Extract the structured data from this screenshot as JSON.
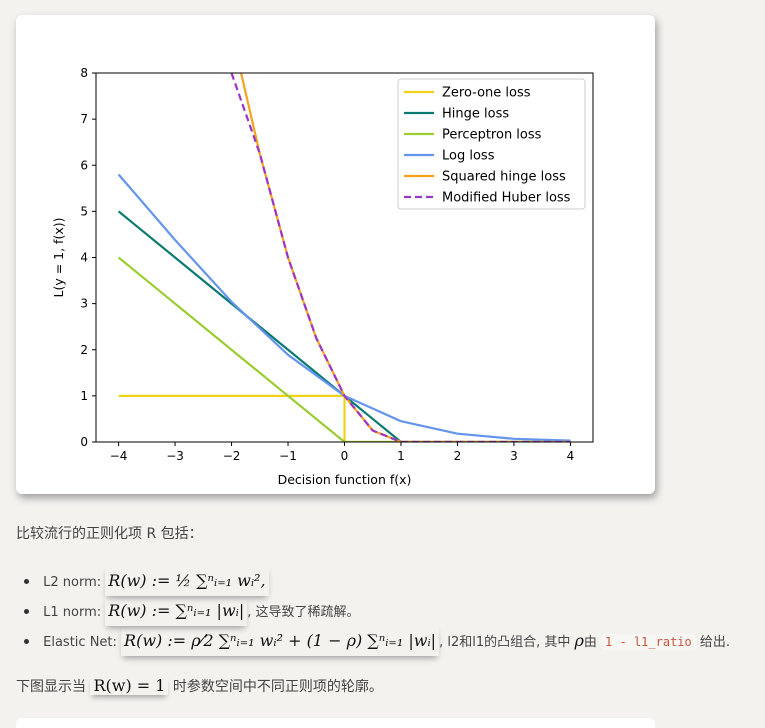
{
  "chart_data": {
    "type": "line",
    "xlabel": "Decision function f(x)",
    "ylabel": "L(y = 1, f(x))",
    "xlim": [
      -4.4,
      4.4
    ],
    "ylim": [
      0,
      8
    ],
    "xticks": [
      "−4",
      "−3",
      "−2",
      "−1",
      "0",
      "1",
      "2",
      "3",
      "4"
    ],
    "yticks": [
      "0",
      "1",
      "2",
      "3",
      "4",
      "5",
      "6",
      "7",
      "8"
    ],
    "grid": false,
    "legend_position": "top-right",
    "series": [
      {
        "name": "Zero-one loss",
        "color": "#f2d11b",
        "dash": false,
        "x": [
          -4,
          0,
          0,
          4
        ],
        "y": [
          1,
          1,
          0,
          0
        ]
      },
      {
        "name": "Hinge loss",
        "color": "#097a70",
        "dash": false,
        "x": [
          -4,
          1,
          4
        ],
        "y": [
          5,
          0,
          0
        ]
      },
      {
        "name": "Perceptron loss",
        "color": "#9acd32",
        "dash": false,
        "x": [
          -4,
          0,
          4
        ],
        "y": [
          4,
          0,
          0
        ]
      },
      {
        "name": "Log loss",
        "color": "#6495ed",
        "dash": false,
        "x": [
          -4,
          -3,
          -2,
          -1,
          0,
          1,
          2,
          3,
          4
        ],
        "y": [
          5.8,
          4.38,
          3.04,
          1.89,
          1.0,
          0.45,
          0.18,
          0.07,
          0.03
        ]
      },
      {
        "name": "Squared hinge loss",
        "color": "#f5a31f",
        "dash": false,
        "x": [
          -1.83,
          -1.5,
          -1,
          -0.5,
          0,
          0.5,
          1,
          4
        ],
        "y": [
          8,
          6.25,
          4,
          2.25,
          1,
          0.25,
          0,
          0
        ]
      },
      {
        "name": "Modified Huber loss",
        "color": "#9b36c7",
        "dash": true,
        "x": [
          -2,
          -1.5,
          -1,
          -0.5,
          0,
          0.5,
          1,
          4
        ],
        "y": [
          8,
          6.25,
          4,
          2.25,
          1,
          0.25,
          0,
          0
        ]
      }
    ]
  },
  "text": {
    "intro": "比较流行的正则化项 R 包括：",
    "items": [
      {
        "label": "L2 norm:",
        "formula": "R(w) := ½ ∑ⁿᵢ₌₁ wᵢ²,",
        "tail": ""
      },
      {
        "label": "L1 norm:",
        "formula": "R(w) := ∑ⁿᵢ₌₁ |wᵢ|",
        "tail": ", 这导致了稀疏解。"
      },
      {
        "label": "Elastic Net:",
        "formula": "R(w) := ρ⁄2 ∑ⁿᵢ₌₁ wᵢ² + (1 − ρ) ∑ⁿᵢ₌₁ |wᵢ|",
        "tail_a": ", l2和l1的凸组合, 其中 ",
        "rho": "ρ",
        "tail_b": "由 ",
        "code": "1 - l1_ratio",
        "tail_c": " 给出."
      }
    ],
    "outro_a": "下图显示当 ",
    "outro_formula": "R(w) = 1",
    "outro_b": " 时参数空间中不同正则项的轮廓。"
  }
}
